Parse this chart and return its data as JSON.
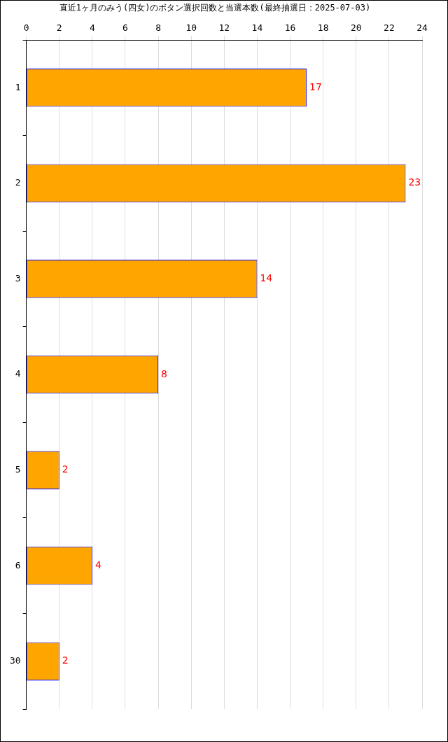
{
  "chart_data": {
    "type": "bar",
    "orientation": "horizontal",
    "title": "直近1ヶ月のみう(四女)のボタン選択回数と当選本数(最終抽選日：2025-07-03)",
    "categories": [
      "1",
      "2",
      "3",
      "4",
      "5",
      "6",
      "30"
    ],
    "values": [
      17,
      23,
      14,
      8,
      2,
      4,
      2
    ],
    "color": "#ffa500",
    "xlim": [
      0,
      24
    ],
    "xticks": [
      0,
      2,
      4,
      6,
      8,
      10,
      12,
      14,
      16,
      18,
      20,
      22,
      24
    ],
    "grid": "x",
    "data_labels": true,
    "legend": false
  }
}
